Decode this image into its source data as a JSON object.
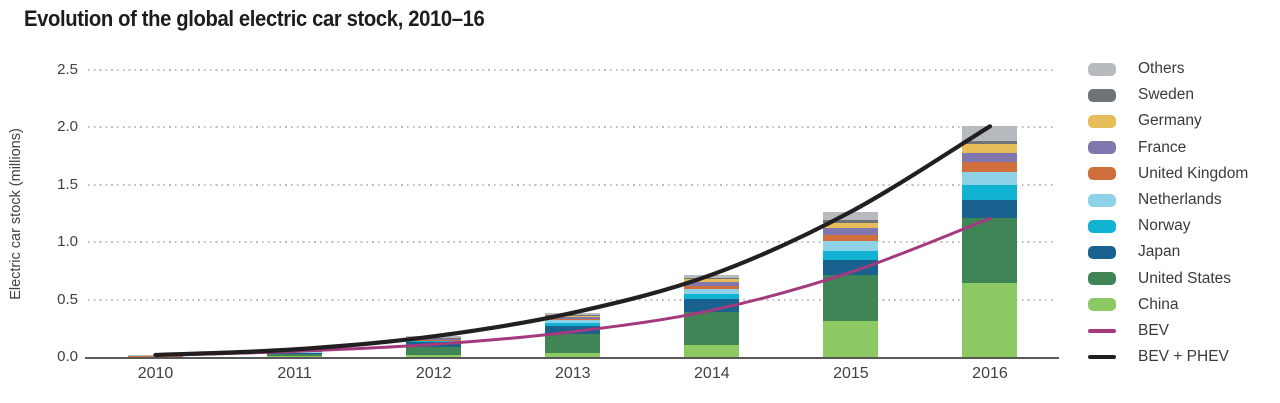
{
  "chart_data": {
    "type": "stacked-bar-with-lines",
    "title": "Evolution of the global electric car stock, 2010–16",
    "ylabel": "Electric car stock (millions)",
    "xlabel": "",
    "ylim": [
      0,
      2.5
    ],
    "yticks": [
      0.0,
      0.5,
      1.0,
      1.5,
      2.0,
      2.5
    ],
    "ytick_labels": [
      "0.0",
      "0.5",
      "1.0",
      "1.5",
      "2.0",
      "2.5"
    ],
    "grid": "horizontal-dotted",
    "legend_position": "right",
    "categories": [
      "2010",
      "2011",
      "2012",
      "2013",
      "2014",
      "2015",
      "2016"
    ],
    "series": [
      {
        "name": "China",
        "color": "#8cc963",
        "values": [
          0.001,
          0.007,
          0.017,
          0.032,
          0.105,
          0.312,
          0.649
        ]
      },
      {
        "name": "United States",
        "color": "#3f8556",
        "values": [
          0.004,
          0.021,
          0.072,
          0.172,
          0.29,
          0.404,
          0.564
        ]
      },
      {
        "name": "Japan",
        "color": "#19618e",
        "values": [
          0.003,
          0.016,
          0.04,
          0.069,
          0.108,
          0.126,
          0.151
        ]
      },
      {
        "name": "Norway",
        "color": "#10b4d2",
        "values": [
          0.001,
          0.003,
          0.01,
          0.02,
          0.044,
          0.084,
          0.133
        ]
      },
      {
        "name": "Netherlands",
        "color": "#8fd2e7",
        "values": [
          0.0,
          0.001,
          0.007,
          0.03,
          0.045,
          0.088,
          0.112
        ]
      },
      {
        "name": "United Kingdom",
        "color": "#d06f3c",
        "values": [
          0.001,
          0.002,
          0.005,
          0.01,
          0.029,
          0.053,
          0.086
        ]
      },
      {
        "name": "France",
        "color": "#8077ae",
        "values": [
          0.0,
          0.003,
          0.009,
          0.018,
          0.031,
          0.054,
          0.084
        ]
      },
      {
        "name": "Germany",
        "color": "#e7bd5a",
        "values": [
          0.0,
          0.002,
          0.005,
          0.012,
          0.024,
          0.048,
          0.073
        ]
      },
      {
        "name": "Sweden",
        "color": "#6e7378",
        "values": [
          0.0,
          0.001,
          0.002,
          0.005,
          0.012,
          0.021,
          0.03
        ]
      },
      {
        "name": "Others",
        "color": "#b7babe",
        "values": [
          0.008,
          0.01,
          0.013,
          0.017,
          0.029,
          0.076,
          0.128
        ]
      }
    ],
    "lines": [
      {
        "name": "BEV",
        "color": "#a23a7d",
        "width": 3,
        "values": [
          0.014,
          0.049,
          0.11,
          0.22,
          0.407,
          0.739,
          1.208
        ]
      },
      {
        "name": "BEV + PHEV",
        "color": "#231f20",
        "width": 4.2,
        "values": [
          0.018,
          0.066,
          0.18,
          0.385,
          0.717,
          1.266,
          2.01
        ]
      }
    ],
    "legend_order": [
      "Others",
      "Sweden",
      "Germany",
      "France",
      "United Kingdom",
      "Netherlands",
      "Norway",
      "Japan",
      "United States",
      "China",
      "BEV",
      "BEV + PHEV"
    ],
    "colors": {
      "axis_line": "#58595b",
      "gridline": "#bdbdbd",
      "tick_text": "#414042",
      "title_text": "#1d1d1b"
    }
  }
}
